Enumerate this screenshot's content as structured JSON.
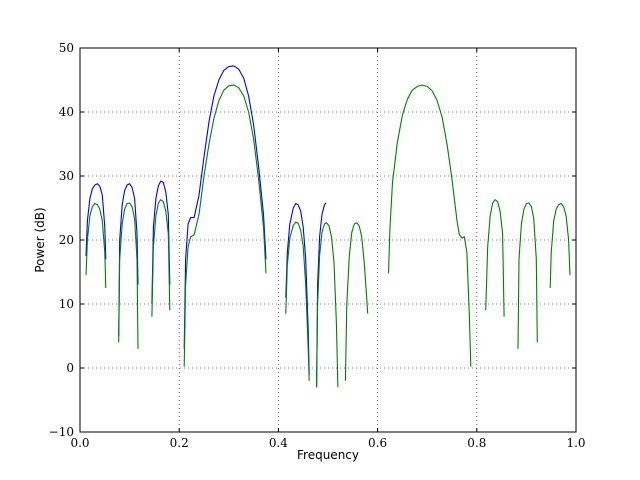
{
  "chart_data": {
    "type": "line",
    "title": "",
    "xlabel": "Frequency",
    "ylabel": "Power (dB)",
    "xlim": [
      0.0,
      1.0
    ],
    "ylim": [
      -10,
      50
    ],
    "xticks": [
      "0.0",
      "0.2",
      "0.4",
      "0.6",
      "0.8",
      "1.0"
    ],
    "yticks": [
      "−10",
      "0",
      "10",
      "20",
      "30",
      "40",
      "50"
    ],
    "grid": true,
    "grid_style": "dotted",
    "legend": "none",
    "series": [
      {
        "color": "#0000ff",
        "segments": [
          [
            [
              0.012,
              17.5
            ],
            [
              0.015,
              23
            ],
            [
              0.02,
              26.5
            ],
            [
              0.025,
              28
            ],
            [
              0.03,
              28.6
            ],
            [
              0.035,
              28.8
            ],
            [
              0.04,
              28.4
            ],
            [
              0.045,
              27
            ],
            [
              0.05,
              22
            ],
            [
              0.052,
              17
            ]
          ],
          [
            [
              0.078,
              5
            ],
            [
              0.08,
              20
            ],
            [
              0.085,
              25.5
            ],
            [
              0.09,
              27.7
            ],
            [
              0.095,
              28.6
            ],
            [
              0.1,
              28.8
            ],
            [
              0.105,
              28.2
            ],
            [
              0.11,
              26.5
            ],
            [
              0.115,
              21
            ],
            [
              0.117,
              13
            ]
          ],
          [
            [
              0.145,
              10
            ],
            [
              0.148,
              22
            ],
            [
              0.153,
              26.5
            ],
            [
              0.158,
              28.5
            ],
            [
              0.163,
              29.2
            ],
            [
              0.168,
              29
            ],
            [
              0.173,
              27.5
            ],
            [
              0.178,
              24
            ],
            [
              0.181,
              13
            ]
          ],
          [
            [
              0.21,
              3
            ],
            [
              0.213,
              17
            ],
            [
              0.218,
              22.5
            ],
            [
              0.223,
              23.5
            ],
            [
              0.23,
              23.5
            ],
            [
              0.24,
              27
            ],
            [
              0.25,
              33
            ],
            [
              0.26,
              38.5
            ],
            [
              0.27,
              42.5
            ],
            [
              0.28,
              45
            ],
            [
              0.29,
              46.5
            ],
            [
              0.3,
              47.1
            ],
            [
              0.31,
              47.2
            ],
            [
              0.32,
              46.7
            ],
            [
              0.33,
              45.3
            ],
            [
              0.34,
              42.5
            ],
            [
              0.35,
              38
            ],
            [
              0.36,
              31.5
            ],
            [
              0.37,
              24
            ],
            [
              0.375,
              17
            ]
          ],
          [
            [
              0.415,
              11
            ],
            [
              0.418,
              18
            ],
            [
              0.423,
              22.5
            ],
            [
              0.43,
              25
            ],
            [
              0.435,
              25.7
            ],
            [
              0.44,
              25.5
            ],
            [
              0.445,
              24.5
            ],
            [
              0.45,
              22
            ],
            [
              0.455,
              17
            ],
            [
              0.46,
              6
            ],
            [
              0.462,
              -1
            ]
          ],
          [
            [
              0.477,
              -3
            ],
            [
              0.479,
              13
            ],
            [
              0.483,
              20.5
            ],
            [
              0.488,
              24
            ],
            [
              0.493,
              25.5
            ],
            [
              0.496,
              25.8
            ]
          ]
        ]
      },
      {
        "color": "#008000",
        "segments": [
          [
            [
              0.012,
              14.5
            ],
            [
              0.015,
              20
            ],
            [
              0.02,
              23.8
            ],
            [
              0.025,
              25.2
            ],
            [
              0.03,
              25.7
            ],
            [
              0.035,
              25.5
            ],
            [
              0.04,
              24.8
            ],
            [
              0.045,
              23
            ],
            [
              0.05,
              18
            ],
            [
              0.052,
              12.5
            ]
          ],
          [
            [
              0.078,
              4
            ],
            [
              0.08,
              17
            ],
            [
              0.085,
              22.5
            ],
            [
              0.09,
              24.8
            ],
            [
              0.095,
              25.7
            ],
            [
              0.1,
              25.8
            ],
            [
              0.105,
              25.2
            ],
            [
              0.11,
              23.3
            ],
            [
              0.115,
              17
            ],
            [
              0.117,
              3
            ]
          ],
          [
            [
              0.145,
              8
            ],
            [
              0.148,
              19
            ],
            [
              0.153,
              23.8
            ],
            [
              0.158,
              25.8
            ],
            [
              0.163,
              26.3
            ],
            [
              0.168,
              26
            ],
            [
              0.173,
              24.5
            ],
            [
              0.178,
              21
            ],
            [
              0.181,
              9
            ]
          ],
          [
            [
              0.21,
              0.2
            ],
            [
              0.213,
              13
            ],
            [
              0.218,
              19
            ],
            [
              0.223,
              20.5
            ],
            [
              0.23,
              20.8
            ],
            [
              0.24,
              24
            ],
            [
              0.25,
              30
            ],
            [
              0.26,
              35
            ],
            [
              0.27,
              39
            ],
            [
              0.28,
              41.8
            ],
            [
              0.29,
              43.4
            ],
            [
              0.3,
              44.1
            ],
            [
              0.31,
              44.2
            ],
            [
              0.32,
              43.8
            ],
            [
              0.33,
              42.5
            ],
            [
              0.34,
              40
            ],
            [
              0.35,
              35.8
            ],
            [
              0.36,
              29.5
            ],
            [
              0.37,
              22
            ],
            [
              0.375,
              14.8
            ]
          ],
          [
            [
              0.415,
              8.5
            ],
            [
              0.418,
              16
            ],
            [
              0.423,
              20.3
            ],
            [
              0.43,
              22.3
            ],
            [
              0.435,
              22.8
            ],
            [
              0.44,
              22.6
            ],
            [
              0.445,
              21.5
            ],
            [
              0.45,
              19
            ],
            [
              0.455,
              13
            ],
            [
              0.46,
              3
            ],
            [
              0.462,
              -2
            ]
          ],
          [
            [
              0.477,
              -3
            ],
            [
              0.479,
              10
            ],
            [
              0.483,
              17.5
            ],
            [
              0.488,
              21.2
            ],
            [
              0.493,
              22.5
            ],
            [
              0.497,
              22.7
            ],
            [
              0.502,
              22.2
            ],
            [
              0.507,
              20.5
            ],
            [
              0.512,
              16.5
            ],
            [
              0.517,
              7
            ],
            [
              0.52,
              -3
            ]
          ],
          [
            [
              0.535,
              -2
            ],
            [
              0.538,
              10
            ],
            [
              0.543,
              17.5
            ],
            [
              0.548,
              21.2
            ],
            [
              0.553,
              22.5
            ],
            [
              0.558,
              22.7
            ],
            [
              0.563,
              22.2
            ],
            [
              0.568,
              20.5
            ],
            [
              0.573,
              16.5
            ],
            [
              0.578,
              11
            ],
            [
              0.58,
              8.5
            ]
          ],
          [
            [
              0.622,
              14.8
            ],
            [
              0.625,
              22
            ],
            [
              0.63,
              29
            ],
            [
              0.64,
              35.3
            ],
            [
              0.65,
              39.5
            ],
            [
              0.66,
              42
            ],
            [
              0.67,
              43.4
            ],
            [
              0.68,
              44
            ],
            [
              0.69,
              44.2
            ],
            [
              0.7,
              44
            ],
            [
              0.71,
              43.3
            ],
            [
              0.72,
              41.8
            ],
            [
              0.73,
              39.2
            ],
            [
              0.74,
              35
            ],
            [
              0.75,
              29.5
            ],
            [
              0.76,
              23
            ],
            [
              0.765,
              20.8
            ],
            [
              0.77,
              20.3
            ],
            [
              0.775,
              20.5
            ],
            [
              0.78,
              18
            ],
            [
              0.785,
              8
            ],
            [
              0.788,
              0.2
            ]
          ],
          [
            [
              0.818,
              9
            ],
            [
              0.822,
              19
            ],
            [
              0.827,
              23.8
            ],
            [
              0.832,
              25.8
            ],
            [
              0.837,
              26.3
            ],
            [
              0.842,
              26
            ],
            [
              0.847,
              24.5
            ],
            [
              0.852,
              21
            ],
            [
              0.855,
              8
            ]
          ],
          [
            [
              0.883,
              3
            ],
            [
              0.885,
              17
            ],
            [
              0.89,
              22.5
            ],
            [
              0.895,
              24.8
            ],
            [
              0.9,
              25.7
            ],
            [
              0.905,
              25.8
            ],
            [
              0.91,
              25.2
            ],
            [
              0.915,
              23.3
            ],
            [
              0.92,
              17
            ],
            [
              0.922,
              4
            ]
          ],
          [
            [
              0.948,
              12.5
            ],
            [
              0.95,
              18
            ],
            [
              0.955,
              23
            ],
            [
              0.96,
              24.8
            ],
            [
              0.965,
              25.5
            ],
            [
              0.97,
              25.7
            ],
            [
              0.975,
              25.2
            ],
            [
              0.98,
              23.8
            ],
            [
              0.985,
              20
            ],
            [
              0.988,
              14.5
            ]
          ]
        ]
      }
    ]
  }
}
